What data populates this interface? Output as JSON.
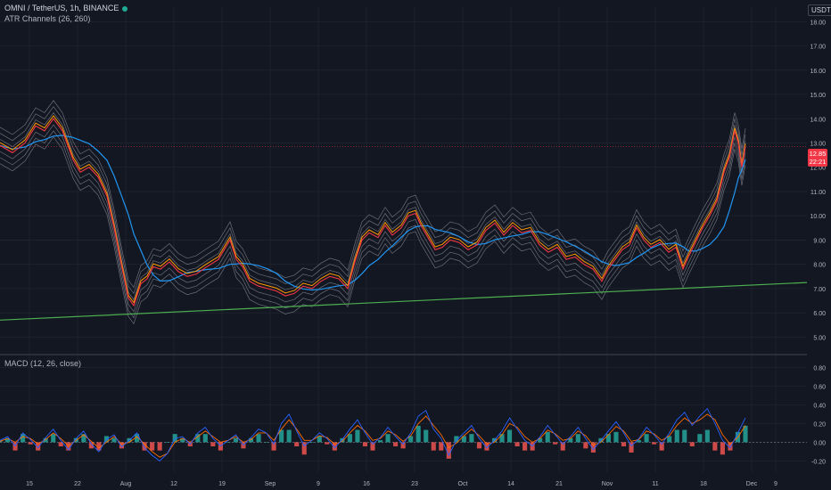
{
  "header": {
    "symbol_title": "OMNI / TetherUS, 1h, BINANCE",
    "indicator_label": "ATR Channels (26, 260)",
    "currency": "USDT"
  },
  "price_tag": {
    "price": "12.85",
    "countdown": "22:21"
  },
  "macd_label": "MACD (12, 26, close)",
  "colors": {
    "background": "#131722",
    "price_line_red": "#f23645",
    "price_line_orange": "#ff9800",
    "band_gray": "#b2b5be",
    "ma_blue": "#2196f3",
    "trendline_green": "#4caf50",
    "macd_blue": "#2962ff",
    "signal_orange": "#ff6d00",
    "hist_up": "#26a69a",
    "hist_down": "#ef5350"
  },
  "chart_data": [
    {
      "type": "line",
      "pane": "price",
      "ylim": [
        4.5,
        18.6
      ],
      "yticks": [
        "5.00",
        "6.00",
        "7.00",
        "8.00",
        "9.00",
        "10.00",
        "11.00",
        "12.00",
        "13.00",
        "14.00",
        "15.00",
        "16.00",
        "17.00",
        "18.00"
      ],
      "xlabels": [
        "15",
        "22",
        "Aug",
        "12",
        "19",
        "Sep",
        "9",
        "16",
        "23",
        "Oct",
        "14",
        "21",
        "Nov",
        "11",
        "18",
        "Dec",
        "9"
      ],
      "last_price": 12.85,
      "series": [
        {
          "points": [
            [
              0,
              12.9
            ],
            [
              14,
              12.6
            ],
            [
              28,
              13.0
            ],
            [
              40,
              13.7
            ],
            [
              50,
              13.5
            ],
            [
              60,
              14.0
            ],
            [
              70,
              13.5
            ],
            [
              82,
              12.3
            ],
            [
              90,
              11.8
            ],
            [
              100,
              12.0
            ],
            [
              110,
              11.6
            ],
            [
              120,
              10.8
            ],
            [
              128,
              9.5
            ],
            [
              136,
              8.0
            ],
            [
              144,
              6.6
            ],
            [
              150,
              6.3
            ],
            [
              158,
              7.2
            ],
            [
              165,
              7.4
            ],
            [
              172,
              7.9
            ],
            [
              180,
              7.8
            ],
            [
              190,
              8.1
            ],
            [
              200,
              7.7
            ],
            [
              210,
              7.5
            ],
            [
              220,
              7.6
            ],
            [
              232,
              7.9
            ],
            [
              245,
              8.2
            ],
            [
              258,
              9.0
            ],
            [
              265,
              8.2
            ],
            [
              272,
              7.9
            ],
            [
              280,
              7.3
            ],
            [
              290,
              7.1
            ],
            [
              300,
              7.0
            ],
            [
              310,
              6.9
            ],
            [
              320,
              6.7
            ],
            [
              330,
              6.8
            ],
            [
              340,
              7.1
            ],
            [
              350,
              7.0
            ],
            [
              360,
              7.3
            ],
            [
              370,
              7.5
            ],
            [
              380,
              7.4
            ],
            [
              390,
              7.0
            ],
            [
              398,
              8.1
            ],
            [
              406,
              9.0
            ],
            [
              414,
              9.3
            ],
            [
              424,
              9.1
            ],
            [
              432,
              9.6
            ],
            [
              440,
              9.2
            ],
            [
              450,
              9.5
            ],
            [
              458,
              10.0
            ],
            [
              466,
              10.1
            ],
            [
              472,
              9.6
            ],
            [
              480,
              9.1
            ],
            [
              488,
              8.6
            ],
            [
              496,
              8.7
            ],
            [
              505,
              9.0
            ],
            [
              515,
              8.9
            ],
            [
              525,
              8.6
            ],
            [
              535,
              8.8
            ],
            [
              545,
              9.4
            ],
            [
              555,
              9.7
            ],
            [
              565,
              9.2
            ],
            [
              575,
              9.6
            ],
            [
              585,
              9.3
            ],
            [
              595,
              9.4
            ],
            [
              605,
              8.8
            ],
            [
              615,
              8.5
            ],
            [
              625,
              8.7
            ],
            [
              635,
              8.2
            ],
            [
              645,
              8.3
            ],
            [
              655,
              8.0
            ],
            [
              665,
              7.8
            ],
            [
              675,
              7.3
            ],
            [
              682,
              7.8
            ],
            [
              690,
              8.2
            ],
            [
              698,
              8.6
            ],
            [
              706,
              8.8
            ],
            [
              714,
              9.5
            ],
            [
              722,
              9.0
            ],
            [
              730,
              8.7
            ],
            [
              740,
              8.9
            ],
            [
              750,
              8.5
            ],
            [
              758,
              8.7
            ],
            [
              766,
              7.8
            ],
            [
              772,
              8.3
            ],
            [
              780,
              8.9
            ],
            [
              788,
              9.5
            ],
            [
              796,
              10.0
            ],
            [
              804,
              10.6
            ],
            [
              812,
              11.8
            ],
            [
              818,
              12.4
            ],
            [
              824,
              13.5
            ],
            [
              828,
              13.0
            ],
            [
              832,
              12.0
            ],
            [
              836,
              12.85
            ]
          ]
        }
      ]
    },
    {
      "type": "line",
      "pane": "macd",
      "ylim": [
        -0.32,
        0.88
      ],
      "yticks": [
        "-0.20",
        "0.00",
        "0.20",
        "0.40",
        "0.60",
        "0.80"
      ],
      "series": [
        {
          "name": "MACD",
          "values": [
            0.02,
            0.06,
            -0.04,
            0.1,
            0.03,
            -0.06,
            0.05,
            0.14,
            0.02,
            -0.08,
            0.04,
            0.12,
            -0.02,
            -0.1,
            0.03,
            0.08,
            -0.05,
            0.02,
            0.1,
            -0.06,
            -0.14,
            -0.2,
            -0.12,
            0.04,
            0.06,
            -0.02,
            0.1,
            0.16,
            0.04,
            -0.04,
            0.02,
            0.08,
            -0.03,
            0.05,
            0.14,
            0.1,
            -0.02,
            0.2,
            0.3,
            0.12,
            -0.04,
            0.02,
            0.1,
            0.04,
            -0.06,
            0.03,
            0.14,
            0.24,
            0.1,
            -0.02,
            0.05,
            0.16,
            0.06,
            -0.02,
            0.1,
            0.28,
            0.34,
            0.14,
            0.04,
            -0.14,
            0.02,
            0.1,
            0.18,
            0.04,
            -0.06,
            0.02,
            0.12,
            0.26,
            0.14,
            0.02,
            -0.04,
            0.06,
            0.18,
            0.08,
            -0.02,
            0.06,
            0.16,
            0.04,
            -0.08,
            0.02,
            0.12,
            0.22,
            0.1,
            -0.04,
            0.04,
            0.16,
            0.08,
            -0.02,
            0.1,
            0.24,
            0.32,
            0.18,
            0.28,
            0.36,
            0.2,
            0.02,
            -0.06,
            0.1,
            0.26
          ]
        },
        {
          "name": "Signal",
          "values": [
            0.01,
            0.04,
            0.0,
            0.06,
            0.04,
            -0.02,
            0.03,
            0.1,
            0.04,
            -0.04,
            0.02,
            0.08,
            0.01,
            -0.06,
            0.0,
            0.06,
            -0.02,
            0.0,
            0.06,
            -0.02,
            -0.1,
            -0.16,
            -0.12,
            0.0,
            0.04,
            0.0,
            0.06,
            0.12,
            0.06,
            0.0,
            0.02,
            0.06,
            0.0,
            0.03,
            0.1,
            0.1,
            0.02,
            0.14,
            0.24,
            0.14,
            0.02,
            0.02,
            0.07,
            0.05,
            -0.02,
            0.01,
            0.1,
            0.18,
            0.12,
            0.02,
            0.04,
            0.12,
            0.08,
            0.01,
            0.07,
            0.2,
            0.28,
            0.18,
            0.08,
            -0.06,
            -0.01,
            0.07,
            0.14,
            0.07,
            -0.02,
            0.0,
            0.08,
            0.2,
            0.16,
            0.06,
            0.0,
            0.04,
            0.13,
            0.09,
            0.02,
            0.04,
            0.12,
            0.07,
            -0.03,
            0.0,
            0.08,
            0.17,
            0.12,
            0.01,
            0.03,
            0.12,
            0.09,
            0.02,
            0.07,
            0.18,
            0.26,
            0.2,
            0.24,
            0.3,
            0.24,
            0.08,
            -0.02,
            0.05,
            0.18
          ]
        }
      ]
    }
  ]
}
